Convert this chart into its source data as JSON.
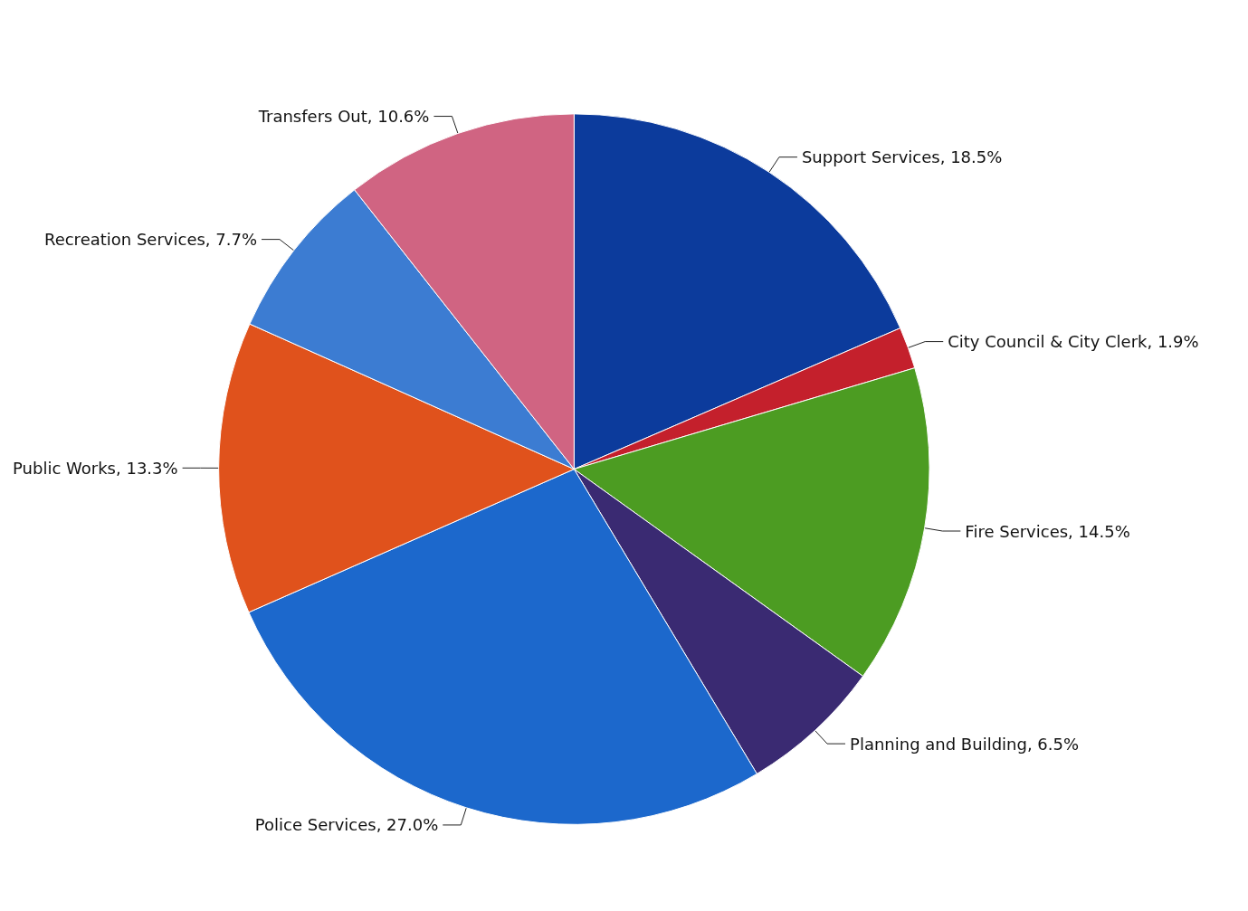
{
  "chart_data": {
    "type": "pie",
    "categories": [
      "Support Services",
      "City Council & City Clerk",
      "Fire Services",
      "Planning and Building",
      "Police Services",
      "Public Works",
      "Recreation Services",
      "Transfers Out"
    ],
    "values": [
      18.5,
      1.9,
      14.5,
      6.5,
      27.0,
      13.3,
      7.7,
      10.6
    ],
    "value_labels": [
      "18.5%",
      "1.9%",
      "14.5%",
      "6.5%",
      "27.0%",
      "13.3%",
      "7.7%",
      "10.6%"
    ],
    "colors": [
      "#0c3b9c",
      "#c4202c",
      "#4c9c22",
      "#3a2a72",
      "#1c68cc",
      "#e0521c",
      "#3c7cd2",
      "#d06482"
    ],
    "legend": false
  }
}
